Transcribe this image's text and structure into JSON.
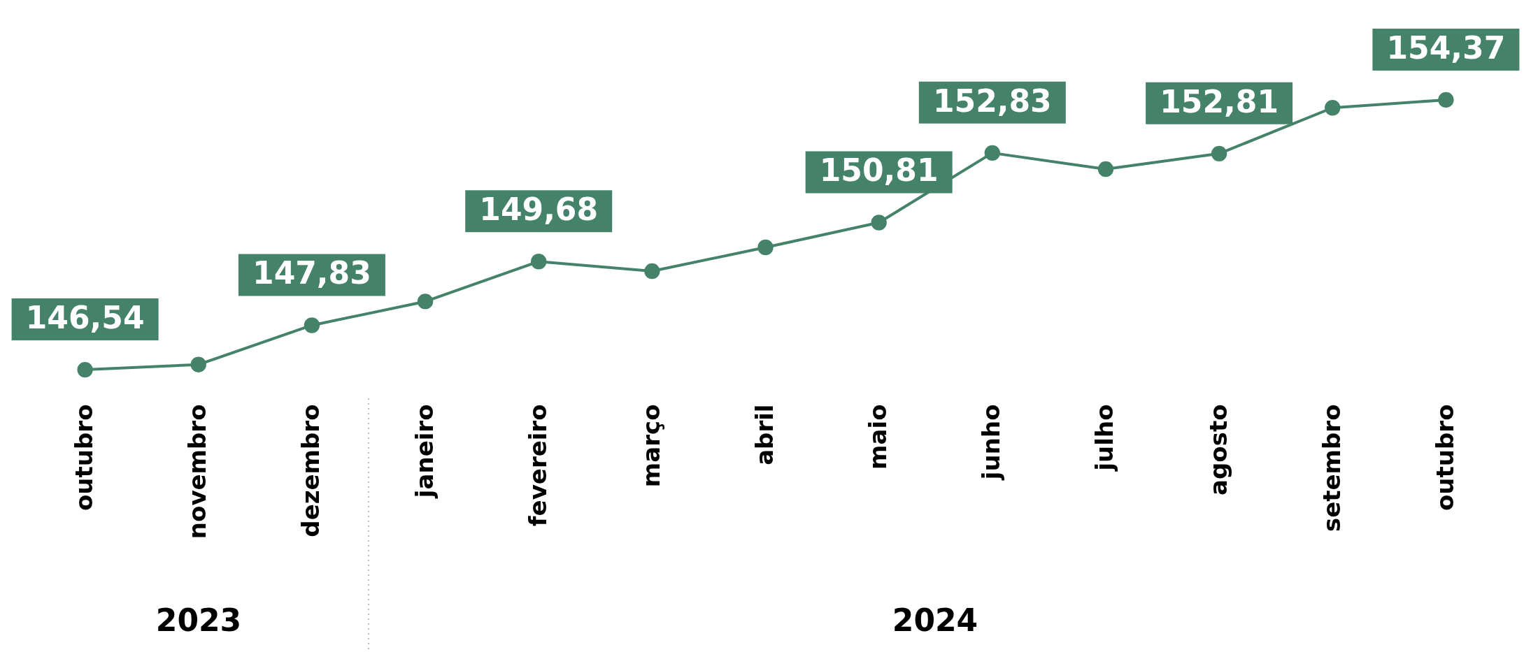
{
  "chart_data": {
    "type": "line",
    "categories": [
      "outubro",
      "novembro",
      "dezembro",
      "janeiro",
      "fevereiro",
      "março",
      "abril",
      "maio",
      "junho",
      "julho",
      "agosto",
      "setembro",
      "outubro"
    ],
    "series": [
      {
        "color": "#44826a",
        "values": [
          146.54,
          146.69,
          147.83,
          148.52,
          149.68,
          149.4,
          150.09,
          150.81,
          152.83,
          152.36,
          152.81,
          154.14,
          154.37
        ],
        "value_labels": [
          "146,54",
          null,
          "147,83",
          null,
          "149,68",
          null,
          null,
          "150,81",
          "152,83",
          null,
          "152,81",
          null,
          "154,37"
        ]
      }
    ],
    "marker": "circle",
    "grid": false,
    "tick_labels": "x",
    "annotations": [
      "2023",
      "2024"
    ]
  }
}
